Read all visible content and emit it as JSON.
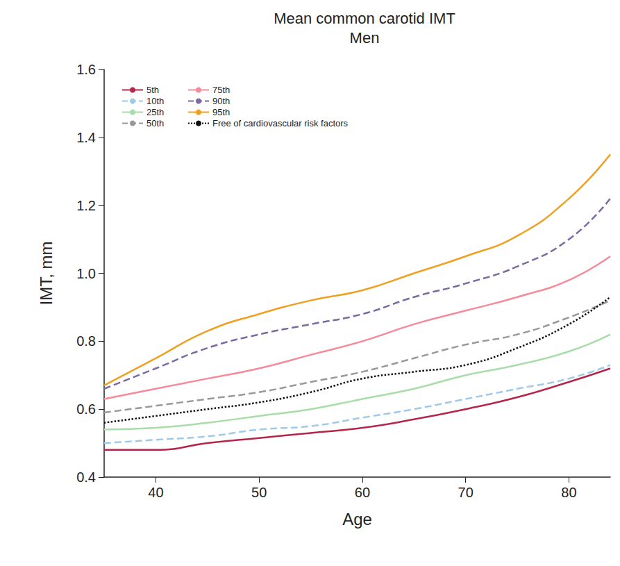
{
  "chart_data": {
    "type": "line",
    "title": "Mean common carotid IMT",
    "subtitle": "Men",
    "x_label": "Age",
    "y_label": "IMT, mm",
    "x": [
      35,
      40,
      45,
      50,
      55,
      60,
      65,
      70,
      75,
      80,
      84
    ],
    "xlim": [
      35,
      84
    ],
    "xticks": [
      40,
      50,
      60,
      70,
      80
    ],
    "ylim": [
      0.4,
      1.6
    ],
    "yticks": [
      0.4,
      0.6,
      0.8,
      {
        "value": 1,
        "label": "1.0"
      },
      1.2,
      1.4,
      1.6
    ],
    "grid": false,
    "legend": "upper left",
    "series": [
      {
        "name": "5th",
        "color": "#b5254a",
        "line_style": "solid",
        "values": [
          0.48,
          0.48,
          0.5,
          0.515,
          0.53,
          0.545,
          0.57,
          0.6,
          0.635,
          0.68,
          0.72
        ]
      },
      {
        "name": "10th",
        "color": "#9ec9ea",
        "line_style": "dashed",
        "values": [
          0.5,
          0.51,
          0.52,
          0.54,
          0.55,
          0.575,
          0.6,
          0.63,
          0.66,
          0.69,
          0.73
        ]
      },
      {
        "name": "25th",
        "color": "#a8dca8",
        "line_style": "solid",
        "values": [
          0.54,
          0.545,
          0.56,
          0.58,
          0.6,
          0.63,
          0.66,
          0.7,
          0.73,
          0.77,
          0.82
        ]
      },
      {
        "name": "50th",
        "color": "#999999",
        "line_style": "dashed",
        "values": [
          0.59,
          0.61,
          0.63,
          0.65,
          0.68,
          0.71,
          0.75,
          0.79,
          0.82,
          0.87,
          0.92
        ]
      },
      {
        "name": "75th",
        "color": "#f48a9a",
        "line_style": "solid",
        "values": [
          0.63,
          0.66,
          0.69,
          0.72,
          0.76,
          0.8,
          0.85,
          0.89,
          0.93,
          0.98,
          1.05
        ]
      },
      {
        "name": "90th",
        "color": "#7b6aa0",
        "line_style": "dashed",
        "values": [
          0.66,
          0.72,
          0.78,
          0.82,
          0.85,
          0.88,
          0.93,
          0.97,
          1.02,
          1.1,
          1.22
        ]
      },
      {
        "name": "95th",
        "color": "#f0a020",
        "line_style": "solid",
        "values": [
          0.67,
          0.75,
          0.83,
          0.88,
          0.92,
          0.95,
          1.0,
          1.05,
          1.11,
          1.22,
          1.35
        ]
      },
      {
        "name": "Free of cardiovascular risk factors",
        "color": "#111111",
        "line_style": "dotted",
        "values": [
          0.56,
          0.58,
          0.6,
          0.62,
          0.65,
          0.69,
          0.71,
          0.73,
          0.78,
          0.85,
          0.93
        ]
      }
    ]
  }
}
